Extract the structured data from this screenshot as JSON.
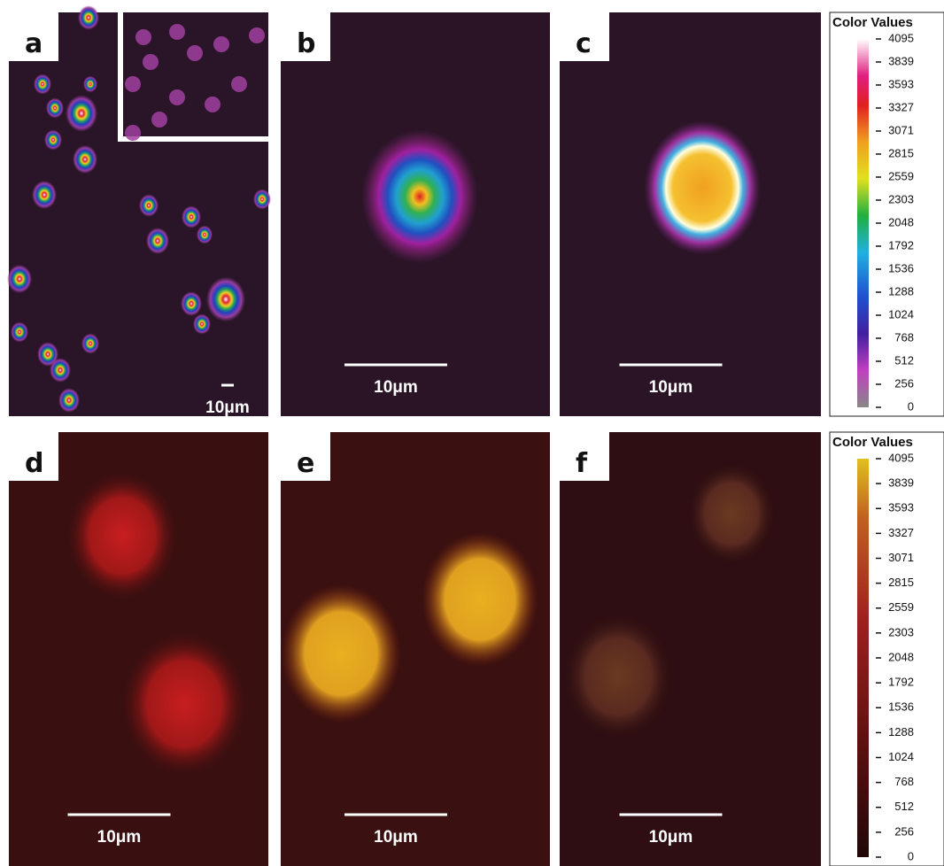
{
  "panels": [
    {
      "label": "a",
      "scale_bar": "10μm"
    },
    {
      "label": "b",
      "scale_bar": "10μm"
    },
    {
      "label": "c",
      "scale_bar": "10μm"
    },
    {
      "label": "d",
      "scale_bar": "10μm"
    },
    {
      "label": "e",
      "scale_bar": "10μm"
    },
    {
      "label": "f",
      "scale_bar": "10μm"
    }
  ],
  "color_bars": [
    {
      "title": "Color Values",
      "ticks": [
        4095,
        3839,
        3593,
        3327,
        3071,
        2815,
        2559,
        2303,
        2048,
        1792,
        1536,
        1288,
        1024,
        768,
        512,
        256,
        0
      ]
    },
    {
      "title": "Color Values",
      "ticks": [
        4095,
        3839,
        3593,
        3327,
        3071,
        2815,
        2559,
        2303,
        2048,
        1792,
        1536,
        1288,
        1024,
        768,
        512,
        256,
        0
      ]
    }
  ]
}
